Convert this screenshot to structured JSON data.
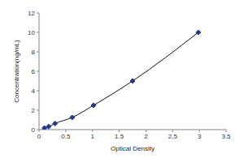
{
  "chart_data": {
    "type": "line",
    "x": [
      0.1,
      0.18,
      0.3,
      0.62,
      1.02,
      1.75,
      2.98
    ],
    "values": [
      0.16,
      0.31,
      0.63,
      1.25,
      2.5,
      5,
      10
    ],
    "x_label": "Optical Density",
    "y_label": "Concentration(ng/mL)",
    "xlim": [
      0,
      3.5
    ],
    "xticks": [
      0,
      0.5,
      1,
      1.5,
      2,
      2.5,
      3,
      3.5
    ],
    "ylim": [
      0,
      12
    ],
    "yticks": [
      0,
      2,
      4,
      6,
      8,
      10,
      12
    ],
    "color": "#1f3a8a",
    "marker": "diamond",
    "grid": false
  }
}
